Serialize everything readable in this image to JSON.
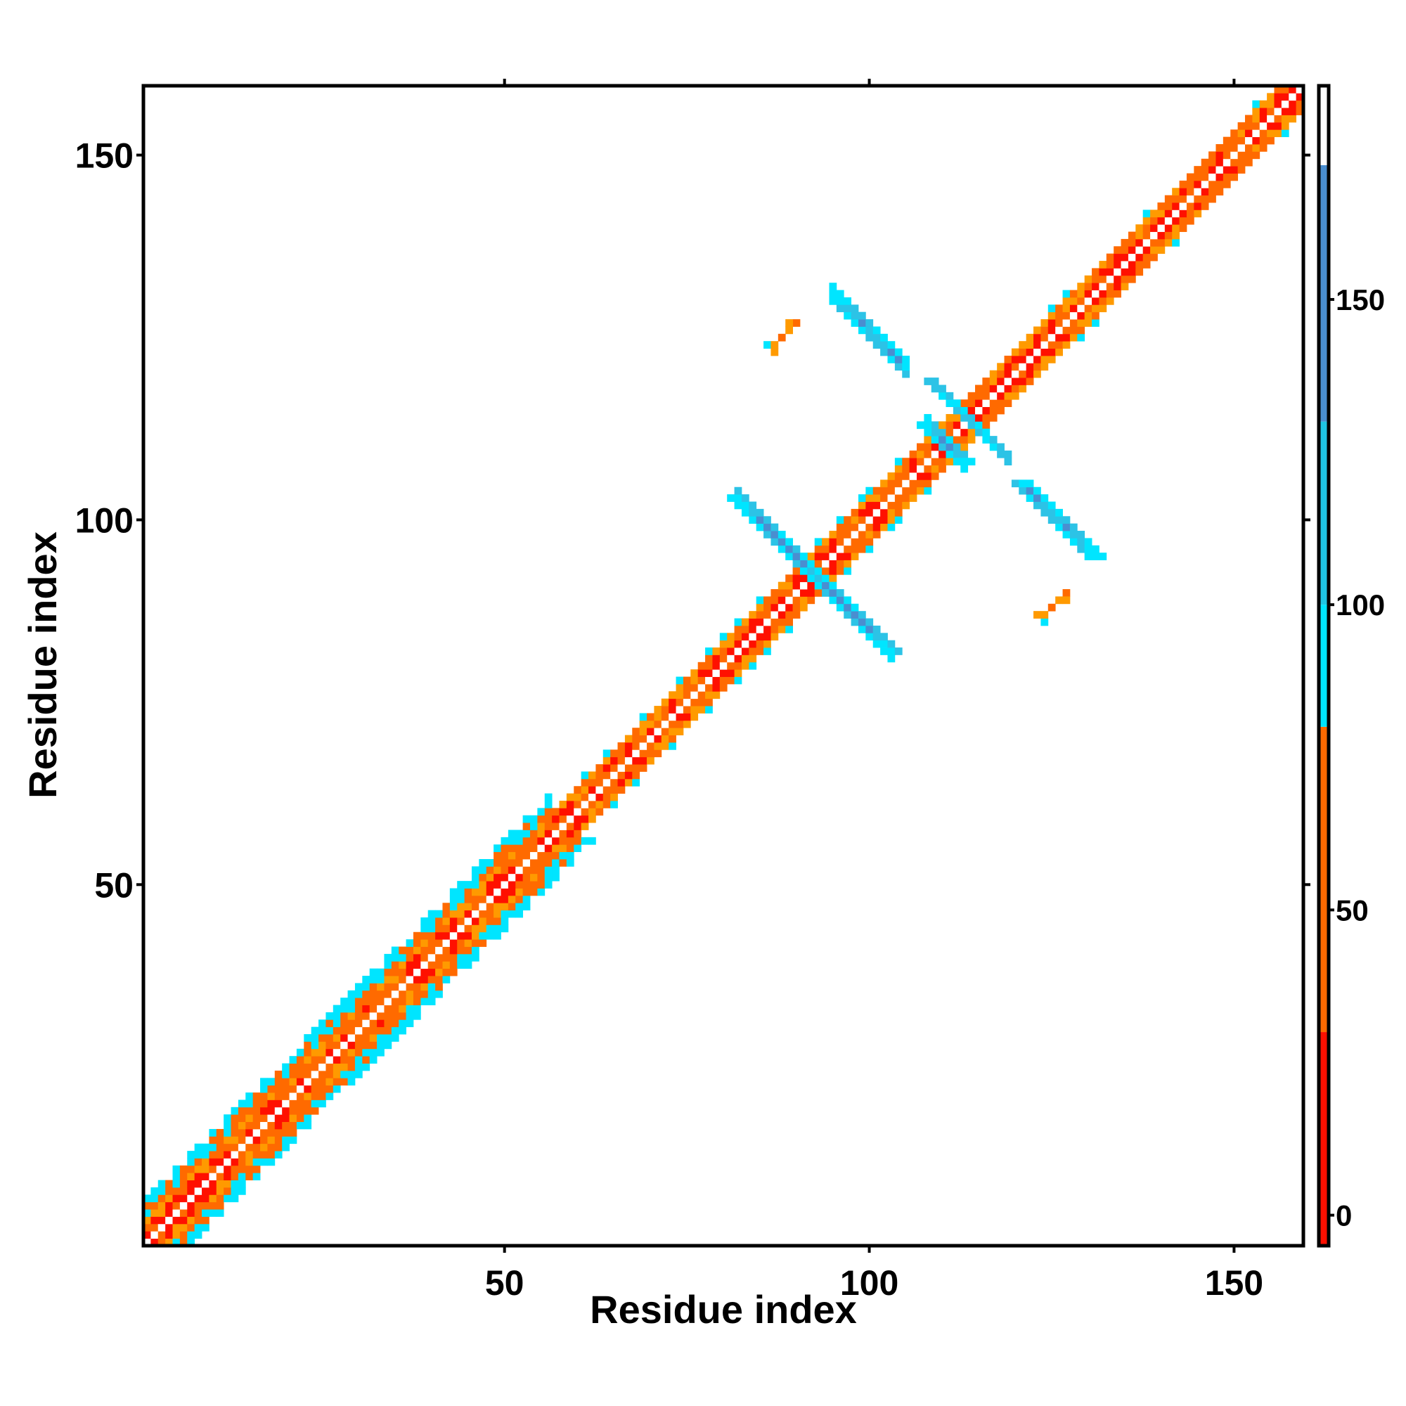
{
  "chart_data": {
    "type": "heatmap",
    "title": "",
    "xlabel": "Residue index",
    "ylabel": "Residue index",
    "xlim": [
      1,
      159
    ],
    "ylim": [
      1,
      159
    ],
    "xticks": [
      50,
      100,
      150
    ],
    "yticks": [
      50,
      100,
      150
    ],
    "xtick_labels": [
      "50",
      "100",
      "150"
    ],
    "ytick_labels": [
      "50",
      "100",
      "150"
    ],
    "grid": false,
    "colorbar": {
      "range": [
        -5,
        185
      ],
      "ticks": [
        0,
        50,
        100,
        150
      ],
      "tick_labels": [
        "0",
        "50",
        "100",
        "150"
      ],
      "segments": [
        {
          "from": -5,
          "to": 30,
          "color": "#ff1000"
        },
        {
          "from": 30,
          "to": 80,
          "color": "#ff6a00"
        },
        {
          "from": 80,
          "to": 100,
          "color": "#00e5ff"
        },
        {
          "from": 100,
          "to": 130,
          "color": "#1fc5e4"
        },
        {
          "from": 130,
          "to": 172,
          "color": "#4a8ed0"
        },
        {
          "from": 172,
          "to": 185,
          "color": "#ffffff"
        }
      ]
    },
    "palette": {
      "red": "#ff1000",
      "orange": "#ff6a00",
      "amber": "#ff9a00",
      "cyan": "#00e5ff",
      "light_blue": "#2cc3e6",
      "steel_blue": "#4a8ed0",
      "white": "#ffffff"
    },
    "regions": [
      {
        "name": "diagonal",
        "from": [
          1,
          1
        ],
        "to": [
          159,
          159
        ],
        "value_range": [
          0,
          80
        ]
      },
      {
        "name": "near-diagonal band",
        "from": [
          1,
          1
        ],
        "to": [
          56,
          56
        ],
        "value_range": [
          80,
          110
        ]
      },
      {
        "name": "antiparallel pair A",
        "from": [
          82,
          103
        ],
        "to": [
          103,
          82
        ],
        "value_range": [
          100,
          160
        ]
      },
      {
        "name": "antiparallel pair B",
        "from": [
          95,
          131
        ],
        "to": [
          105,
          121
        ],
        "value_range": [
          100,
          160
        ]
      },
      {
        "name": "antiparallel pair C",
        "from": [
          119,
          104
        ],
        "to": [
          131,
          95
        ],
        "value_range": [
          100,
          160
        ]
      },
      {
        "name": "helix-helix cross at 114",
        "center": [
          114,
          114
        ],
        "value_range": [
          100,
          150
        ]
      },
      {
        "name": "small contact",
        "from": [
          86,
          124
        ],
        "to": [
          90,
          127
        ],
        "value_range": [
          40,
          90
        ]
      },
      {
        "name": "small contact",
        "from": [
          124,
          86
        ],
        "to": [
          127,
          90
        ],
        "value_range": [
          40,
          90
        ]
      }
    ]
  }
}
